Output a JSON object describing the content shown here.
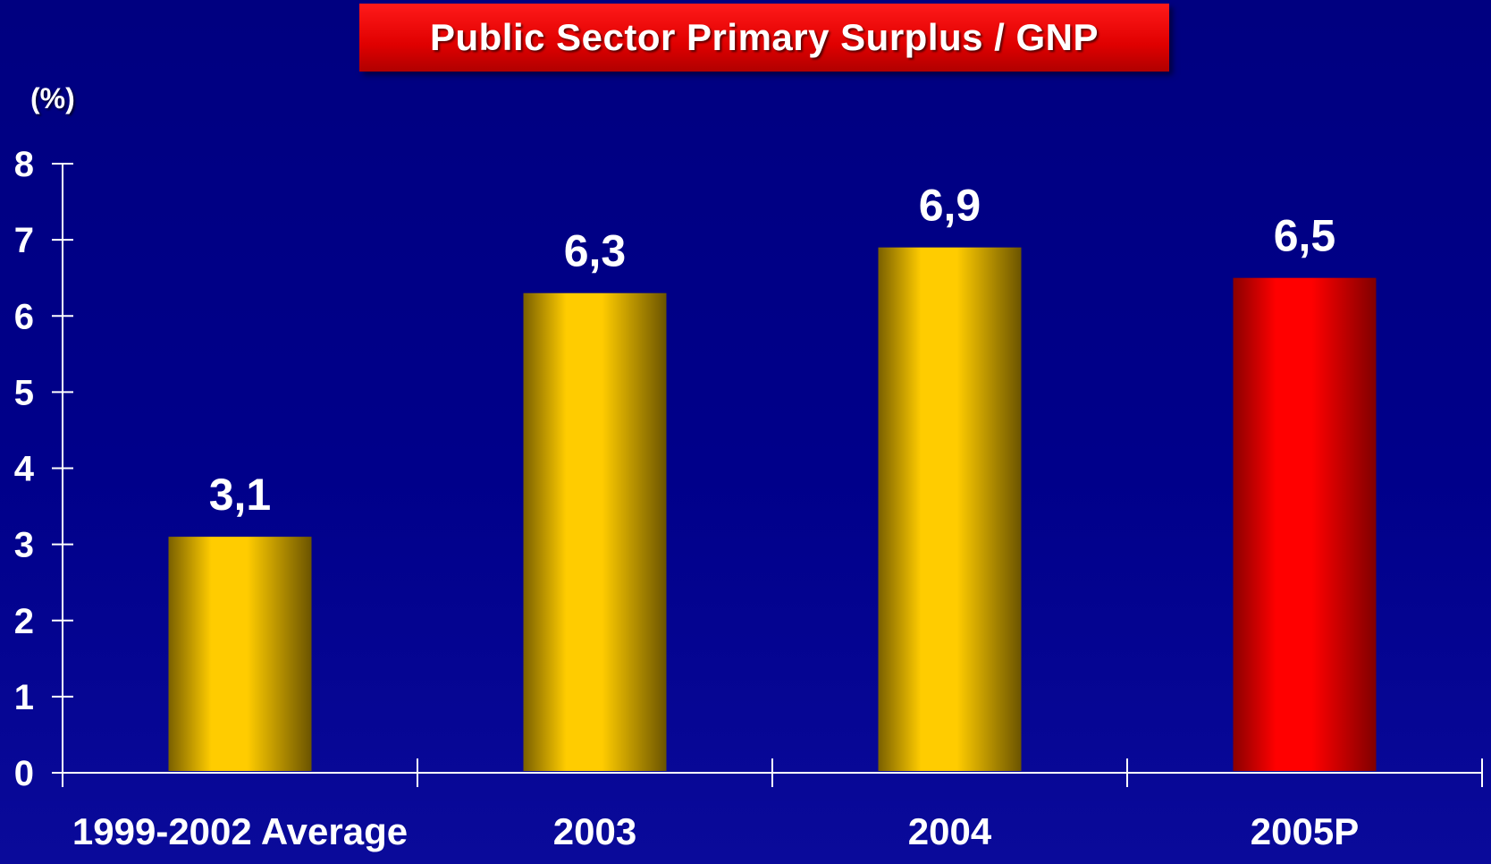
{
  "title": "Public Sector Primary Surplus / GNP",
  "unit_label": "(%)",
  "chart_data": {
    "type": "bar",
    "title": "Public Sector Primary Surplus / GNP",
    "ylabel": "(%)",
    "xlabel": "",
    "ylim": [
      0,
      8
    ],
    "yticks": [
      "0",
      "1",
      "2",
      "3",
      "4",
      "5",
      "6",
      "7",
      "8"
    ],
    "categories": [
      "1999-2002 Average",
      "2003",
      "2004",
      "2005P"
    ],
    "values": [
      3.1,
      6.3,
      6.9,
      6.5
    ],
    "value_labels": [
      "3,1",
      "6,3",
      "6,9",
      "6,5"
    ],
    "bar_colors": [
      "#ffcc00",
      "#ffcc00",
      "#ffcc00",
      "#ff0000"
    ],
    "grid": false,
    "legend": "none"
  },
  "colors": {
    "background": "#000080",
    "title_box": "#e00000",
    "bar_gold": "#ffcc00",
    "bar_red": "#ff0000",
    "text": "#ffffff"
  }
}
